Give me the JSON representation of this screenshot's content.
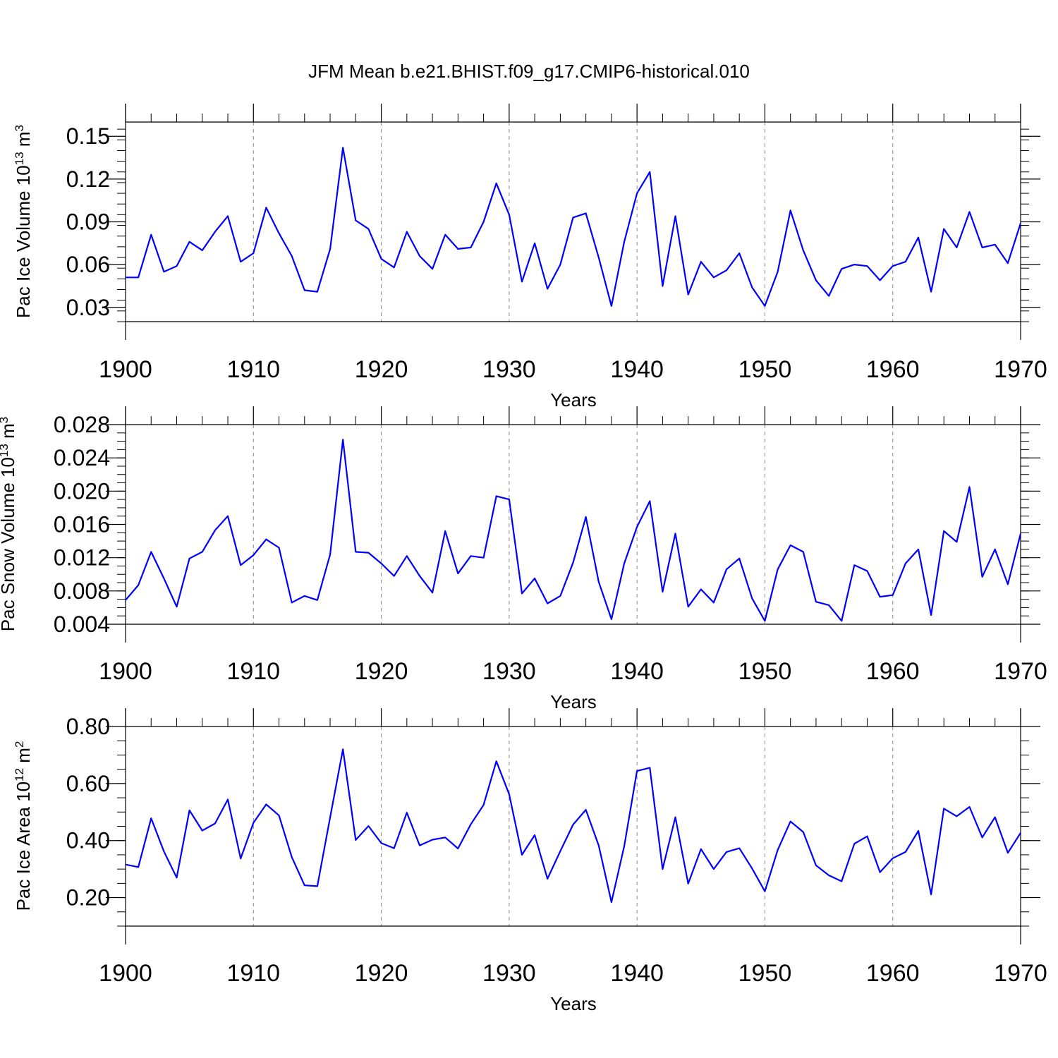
{
  "title": "JFM Mean b.e21.BHIST.f09_g17.CMIP6-historical.010",
  "colors": {
    "line": "#0000ff",
    "axis": "#000000",
    "grid": "#888888"
  },
  "chart_data": [
    {
      "type": "line",
      "ylabel": {
        "text": "Pac Ice Volume 10",
        "exp": "13",
        "unit": "m",
        "unit_exp": "3"
      },
      "xlabel": "Years",
      "xlim": [
        1900,
        1970
      ],
      "ylim": [
        0.02,
        0.16
      ],
      "yticks": [
        0.03,
        0.06,
        0.09,
        0.12,
        0.15
      ],
      "ytick_labels": [
        "0.03",
        "0.06",
        "0.09",
        "0.12",
        "0.15"
      ],
      "xticks": [
        1900,
        1910,
        1920,
        1930,
        1940,
        1950,
        1960,
        1970
      ],
      "xtick_labels": [
        "1900",
        "1910",
        "1920",
        "1930",
        "1940",
        "1950",
        "1960",
        "1970"
      ],
      "x_start": 1900,
      "values": [
        0.051,
        0.051,
        0.081,
        0.055,
        0.059,
        0.076,
        0.07,
        0.083,
        0.094,
        0.062,
        0.068,
        0.1,
        0.082,
        0.066,
        0.042,
        0.041,
        0.071,
        0.142,
        0.091,
        0.085,
        0.064,
        0.058,
        0.083,
        0.066,
        0.057,
        0.081,
        0.071,
        0.072,
        0.09,
        0.117,
        0.095,
        0.048,
        0.075,
        0.043,
        0.06,
        0.093,
        0.096,
        0.065,
        0.031,
        0.076,
        0.11,
        0.125,
        0.045,
        0.094,
        0.039,
        0.062,
        0.051,
        0.056,
        0.068,
        0.044,
        0.031,
        0.055,
        0.098,
        0.07,
        0.049,
        0.038,
        0.057,
        0.06,
        0.059,
        0.049,
        0.059,
        0.062,
        0.079,
        0.041,
        0.085,
        0.072,
        0.097,
        0.072,
        0.074,
        0.061,
        0.089
      ]
    },
    {
      "type": "line",
      "ylabel": {
        "text": "Pac Snow Volume 10",
        "exp": "13",
        "unit": "m",
        "unit_exp": "3"
      },
      "xlabel": "Years",
      "xlim": [
        1900,
        1970
      ],
      "ylim": [
        0.004,
        0.028
      ],
      "yticks": [
        0.004,
        0.008,
        0.012,
        0.016,
        0.02,
        0.024,
        0.028
      ],
      "ytick_labels": [
        "0.004",
        "0.008",
        "0.012",
        "0.016",
        "0.020",
        "0.024",
        "0.028"
      ],
      "xticks": [
        1900,
        1910,
        1920,
        1930,
        1940,
        1950,
        1960,
        1970
      ],
      "xtick_labels": [
        "1900",
        "1910",
        "1920",
        "1930",
        "1940",
        "1950",
        "1960",
        "1970"
      ],
      "x_start": 1900,
      "values": [
        0.0069,
        0.0087,
        0.0127,
        0.0095,
        0.0061,
        0.0119,
        0.0127,
        0.0153,
        0.017,
        0.0111,
        0.0123,
        0.0142,
        0.0132,
        0.0066,
        0.0074,
        0.0069,
        0.0124,
        0.0262,
        0.0127,
        0.0126,
        0.0113,
        0.0098,
        0.0122,
        0.0098,
        0.0078,
        0.0152,
        0.0101,
        0.0122,
        0.012,
        0.0194,
        0.019,
        0.0077,
        0.0095,
        0.0065,
        0.0074,
        0.0114,
        0.0169,
        0.0091,
        0.0046,
        0.0113,
        0.0157,
        0.0188,
        0.0079,
        0.0149,
        0.0061,
        0.0082,
        0.0066,
        0.0106,
        0.0119,
        0.0071,
        0.0044,
        0.0106,
        0.0135,
        0.0127,
        0.0067,
        0.0063,
        0.0044,
        0.0111,
        0.0104,
        0.0073,
        0.0075,
        0.0113,
        0.013,
        0.0051,
        0.0152,
        0.0139,
        0.0205,
        0.0097,
        0.013,
        0.0088,
        0.0149
      ]
    },
    {
      "type": "line",
      "ylabel": {
        "text": "Pac Ice Area 10",
        "exp": "12",
        "unit": "m",
        "unit_exp": "2"
      },
      "xlabel": "Years",
      "xlim": [
        1900,
        1970
      ],
      "ylim": [
        0.1,
        0.8
      ],
      "yticks": [
        0.2,
        0.4,
        0.6,
        0.8
      ],
      "ytick_labels": [
        "0.20",
        "0.40",
        "0.60",
        "0.80"
      ],
      "xticks": [
        1900,
        1910,
        1920,
        1930,
        1940,
        1950,
        1960,
        1970
      ],
      "xtick_labels": [
        "1900",
        "1910",
        "1920",
        "1930",
        "1940",
        "1950",
        "1960",
        "1970"
      ],
      "x_start": 1900,
      "values": [
        0.316,
        0.307,
        0.478,
        0.362,
        0.27,
        0.506,
        0.435,
        0.46,
        0.544,
        0.337,
        0.462,
        0.527,
        0.488,
        0.342,
        0.243,
        0.24,
        0.482,
        0.72,
        0.402,
        0.451,
        0.391,
        0.373,
        0.498,
        0.383,
        0.403,
        0.411,
        0.372,
        0.457,
        0.525,
        0.678,
        0.562,
        0.35,
        0.419,
        0.266,
        0.363,
        0.456,
        0.508,
        0.383,
        0.184,
        0.38,
        0.644,
        0.655,
        0.3,
        0.482,
        0.249,
        0.37,
        0.3,
        0.36,
        0.373,
        0.302,
        0.222,
        0.367,
        0.467,
        0.43,
        0.313,
        0.278,
        0.257,
        0.389,
        0.415,
        0.289,
        0.338,
        0.36,
        0.434,
        0.211,
        0.512,
        0.485,
        0.518,
        0.411,
        0.482,
        0.357,
        0.427
      ]
    }
  ]
}
